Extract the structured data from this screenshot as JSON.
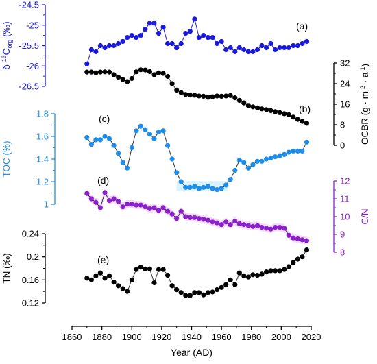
{
  "chart_data": [
    {
      "type": "line",
      "panel_label": "(a)",
      "ylabel": "δ ¹³C_org (‰)",
      "ylabel_parts": [
        "δ ",
        "13",
        "C",
        "org",
        " (‰)"
      ],
      "ylim": [
        -26.5,
        -24.5
      ],
      "yticks": [
        "-24.5",
        "-25",
        "-25.5",
        "-26",
        "-26.5"
      ],
      "ytick_values": [
        -24.5,
        -25,
        -25.5,
        -26,
        -26.5
      ],
      "axis_side": "left",
      "color": "#1a1adb",
      "x": [
        1870,
        1873,
        1876,
        1879,
        1882,
        1885,
        1888,
        1891,
        1894,
        1897,
        1900,
        1903,
        1906,
        1909,
        1912,
        1915,
        1918,
        1921,
        1924,
        1927,
        1930,
        1933,
        1936,
        1939,
        1942,
        1945,
        1948,
        1951,
        1954,
        1957,
        1960,
        1963,
        1966,
        1969,
        1972,
        1975,
        1978,
        1981,
        1984,
        1987,
        1990,
        1993,
        1996,
        1999,
        2002,
        2005,
        2008,
        2011,
        2014,
        2017
      ],
      "values": [
        -25.95,
        -25.6,
        -25.65,
        -25.5,
        -25.55,
        -25.5,
        -25.5,
        -25.45,
        -25.4,
        -25.3,
        -25.25,
        -25.3,
        -25.25,
        -25.1,
        -24.95,
        -24.95,
        -25.2,
        -25.05,
        -25.45,
        -25.45,
        -25.55,
        -25.45,
        -25.2,
        -25.15,
        -24.85,
        -25.3,
        -25.25,
        -25.3,
        -25.3,
        -25.45,
        -25.4,
        -25.6,
        -25.55,
        -25.65,
        -25.55,
        -25.6,
        -25.65,
        -25.65,
        -25.6,
        -25.5,
        -25.55,
        -25.45,
        -25.6,
        -25.55,
        -25.55,
        -25.55,
        -25.5,
        -25.5,
        -25.45,
        -25.4
      ]
    },
    {
      "type": "line",
      "panel_label": "(b)",
      "ylabel": "OCBR (g · m⁻² · a⁻¹)",
      "ylabel_parts": [
        "OCBR (g · m",
        "-2",
        " · a",
        "-1",
        ")"
      ],
      "ylim": [
        0,
        32
      ],
      "yticks": [
        "0",
        "8",
        "16",
        "24",
        "32"
      ],
      "ytick_values": [
        0,
        8,
        16,
        24,
        32
      ],
      "axis_side": "right",
      "color": "#000000",
      "x": [
        1870,
        1873,
        1876,
        1879,
        1882,
        1885,
        1888,
        1891,
        1894,
        1897,
        1900,
        1903,
        1906,
        1909,
        1912,
        1915,
        1918,
        1921,
        1924,
        1927,
        1930,
        1933,
        1936,
        1939,
        1942,
        1945,
        1948,
        1951,
        1954,
        1957,
        1960,
        1963,
        1966,
        1969,
        1972,
        1975,
        1978,
        1981,
        1984,
        1987,
        1990,
        1993,
        1996,
        1999,
        2002,
        2005,
        2008,
        2011,
        2014,
        2017
      ],
      "values": [
        28.5,
        28.5,
        28.2,
        28.5,
        28.6,
        28.5,
        27.5,
        26.5,
        25.6,
        24.8,
        26,
        28.6,
        29.4,
        29.3,
        28.7,
        27.5,
        28.2,
        28,
        26.8,
        24,
        21.5,
        20.5,
        19.8,
        19.6,
        19.5,
        19.2,
        19.1,
        18.7,
        18.9,
        19.2,
        19.1,
        19.2,
        19.4,
        18.5,
        17.5,
        16.5,
        15.5,
        15,
        14.6,
        14.2,
        13.9,
        13.5,
        13.1,
        12.7,
        12.3,
        11.9,
        11,
        10.1,
        9.3,
        8.6
      ]
    },
    {
      "type": "line",
      "panel_label": "(c)",
      "ylabel": "TOC (%)",
      "ylim": [
        1,
        1.8
      ],
      "yticks": [
        "1",
        "1.2",
        "1.4",
        "1.6",
        "1.8"
      ],
      "ytick_values": [
        1,
        1.2,
        1.4,
        1.6,
        1.8
      ],
      "axis_side": "left",
      "color": "#1f8ee8",
      "x": [
        1870,
        1873,
        1876,
        1879,
        1882,
        1885,
        1888,
        1891,
        1894,
        1897,
        1900,
        1903,
        1906,
        1909,
        1912,
        1915,
        1918,
        1921,
        1924,
        1927,
        1930,
        1933,
        1936,
        1939,
        1942,
        1945,
        1948,
        1951,
        1954,
        1957,
        1960,
        1963,
        1966,
        1969,
        1972,
        1975,
        1978,
        1981,
        1984,
        1987,
        1990,
        1993,
        1996,
        1999,
        2002,
        2005,
        2008,
        2011,
        2014,
        2017
      ],
      "values": [
        1.59,
        1.53,
        1.57,
        1.57,
        1.6,
        1.58,
        1.52,
        1.45,
        1.37,
        1.32,
        1.5,
        1.65,
        1.69,
        1.66,
        1.62,
        1.58,
        1.64,
        1.65,
        1.52,
        1.4,
        1.28,
        1.2,
        1.15,
        1.15,
        1.16,
        1.14,
        1.15,
        1.16,
        1.14,
        1.13,
        1.14,
        1.17,
        1.22,
        1.3,
        1.39,
        1.37,
        1.32,
        1.35,
        1.38,
        1.38,
        1.4,
        1.41,
        1.42,
        1.43,
        1.44,
        1.46,
        1.47,
        1.47,
        1.47,
        1.55
      ]
    },
    {
      "type": "line",
      "panel_label": "(d)",
      "ylabel": "C/N",
      "ylim": [
        8,
        12
      ],
      "yticks": [
        "8",
        "9",
        "10",
        "11",
        "12"
      ],
      "ytick_values": [
        8,
        9,
        10,
        11,
        12
      ],
      "axis_side": "right",
      "color": "#8a21c9",
      "x": [
        1870,
        1873,
        1876,
        1879,
        1882,
        1885,
        1888,
        1891,
        1894,
        1897,
        1900,
        1903,
        1906,
        1909,
        1912,
        1915,
        1918,
        1921,
        1924,
        1927,
        1930,
        1933,
        1936,
        1939,
        1942,
        1945,
        1948,
        1951,
        1954,
        1957,
        1960,
        1963,
        1966,
        1969,
        1972,
        1975,
        1978,
        1981,
        1984,
        1987,
        1990,
        1993,
        1996,
        1999,
        2002,
        2005,
        2008,
        2011,
        2014,
        2017
      ],
      "values": [
        11.3,
        11,
        10.8,
        10.5,
        11.35,
        10.9,
        11,
        10.85,
        10.55,
        10.7,
        10.7,
        10.65,
        10.65,
        10.55,
        10.45,
        10.5,
        10.35,
        10.5,
        10.3,
        10.15,
        9.9,
        10.3,
        10,
        9.95,
        9.95,
        9.9,
        9.85,
        9.8,
        9.7,
        9.65,
        9.55,
        9.7,
        9.55,
        9.75,
        9.6,
        9.55,
        9.5,
        9.45,
        9.5,
        9.4,
        9.35,
        9.3,
        9.4,
        9.4,
        9.35,
        8.95,
        8.8,
        8.75,
        8.7,
        8.65
      ]
    },
    {
      "type": "line",
      "panel_label": "(e)",
      "ylabel": "TN (‰)",
      "ylim": [
        0.12,
        0.24
      ],
      "yticks": [
        "0.12",
        "0.16",
        "0.2",
        "0.24"
      ],
      "ytick_values": [
        0.12,
        0.16,
        0.2,
        0.24
      ],
      "axis_side": "left",
      "color": "#000000",
      "x": [
        1870,
        1873,
        1876,
        1879,
        1882,
        1885,
        1888,
        1891,
        1894,
        1897,
        1900,
        1903,
        1906,
        1909,
        1912,
        1915,
        1918,
        1921,
        1924,
        1927,
        1930,
        1933,
        1936,
        1939,
        1942,
        1945,
        1948,
        1951,
        1954,
        1957,
        1960,
        1963,
        1966,
        1969,
        1972,
        1975,
        1978,
        1981,
        1984,
        1987,
        1990,
        1993,
        1996,
        1999,
        2002,
        2005,
        2008,
        2011,
        2014,
        2017
      ],
      "values": [
        0.163,
        0.16,
        0.167,
        0.172,
        0.163,
        0.167,
        0.156,
        0.15,
        0.145,
        0.14,
        0.16,
        0.178,
        0.182,
        0.179,
        0.179,
        0.155,
        0.178,
        0.178,
        0.168,
        0.15,
        0.143,
        0.138,
        0.133,
        0.133,
        0.138,
        0.138,
        0.134,
        0.138,
        0.139,
        0.143,
        0.147,
        0.152,
        0.16,
        0.152,
        0.172,
        0.167,
        0.165,
        0.169,
        0.168,
        0.17,
        0.174,
        0.176,
        0.176,
        0.176,
        0.178,
        0.183,
        0.19,
        0.196,
        0.2,
        0.212
      ]
    }
  ],
  "x_axis": {
    "xlabel": "Year (AD)",
    "xlim": [
      1860,
      2020
    ],
    "xticks": [
      "1860",
      "1880",
      "1900",
      "1920",
      "1940",
      "1960",
      "1980",
      "2000",
      "2020"
    ],
    "xtick_values": [
      1860,
      1880,
      1900,
      1920,
      1940,
      1960,
      1980,
      2000,
      2020
    ]
  },
  "highlight_color": "#d9f3ff",
  "cn_highlight_color": "#f1d3fb"
}
